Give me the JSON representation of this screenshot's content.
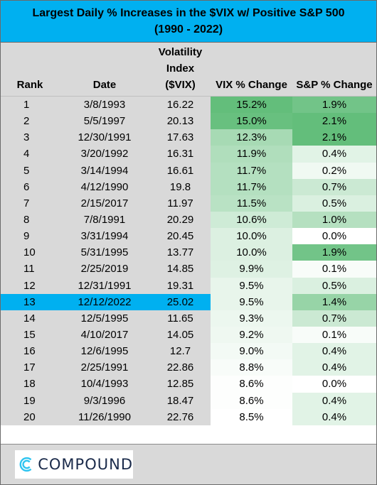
{
  "title": {
    "line1": "Largest Daily % Increases in the $VIX w/ Positive S&P 500",
    "line2": "(1990 - 2022)"
  },
  "headers": {
    "rank": "Rank",
    "date": "Date",
    "vix_line1": "Volatility",
    "vix_line2": "Index",
    "vix_line3": "($VIX)",
    "vix_change": "VIX % Change",
    "sp_change": "S&P % Change"
  },
  "rows": [
    {
      "rank": "1",
      "date": "3/8/1993",
      "vix": "16.22",
      "vix_change": "15.2%",
      "sp_change": "1.9%"
    },
    {
      "rank": "2",
      "date": "5/5/1997",
      "vix": "20.13",
      "vix_change": "15.0%",
      "sp_change": "2.1%"
    },
    {
      "rank": "3",
      "date": "12/30/1991",
      "vix": "17.63",
      "vix_change": "12.3%",
      "sp_change": "2.1%"
    },
    {
      "rank": "4",
      "date": "3/20/1992",
      "vix": "16.31",
      "vix_change": "11.9%",
      "sp_change": "0.4%"
    },
    {
      "rank": "5",
      "date": "3/14/1994",
      "vix": "16.61",
      "vix_change": "11.7%",
      "sp_change": "0.2%"
    },
    {
      "rank": "6",
      "date": "4/12/1990",
      "vix": "19.8",
      "vix_change": "11.7%",
      "sp_change": "0.7%"
    },
    {
      "rank": "7",
      "date": "2/15/2017",
      "vix": "11.97",
      "vix_change": "11.5%",
      "sp_change": "0.5%"
    },
    {
      "rank": "8",
      "date": "7/8/1991",
      "vix": "20.29",
      "vix_change": "10.6%",
      "sp_change": "1.0%"
    },
    {
      "rank": "9",
      "date": "3/31/1994",
      "vix": "20.45",
      "vix_change": "10.0%",
      "sp_change": "0.0%"
    },
    {
      "rank": "10",
      "date": "5/31/1995",
      "vix": "13.77",
      "vix_change": "10.0%",
      "sp_change": "1.9%"
    },
    {
      "rank": "11",
      "date": "2/25/2019",
      "vix": "14.85",
      "vix_change": "9.9%",
      "sp_change": "0.1%"
    },
    {
      "rank": "12",
      "date": "12/31/1991",
      "vix": "19.31",
      "vix_change": "9.5%",
      "sp_change": "0.5%"
    },
    {
      "rank": "13",
      "date": "12/12/2022",
      "vix": "25.02",
      "vix_change": "9.5%",
      "sp_change": "1.4%"
    },
    {
      "rank": "14",
      "date": "12/5/1995",
      "vix": "11.65",
      "vix_change": "9.3%",
      "sp_change": "0.7%"
    },
    {
      "rank": "15",
      "date": "4/10/2017",
      "vix": "14.05",
      "vix_change": "9.2%",
      "sp_change": "0.1%"
    },
    {
      "rank": "16",
      "date": "12/6/1995",
      "vix": "12.7",
      "vix_change": "9.0%",
      "sp_change": "0.4%"
    },
    {
      "rank": "17",
      "date": "2/25/1991",
      "vix": "22.86",
      "vix_change": "8.8%",
      "sp_change": "0.4%"
    },
    {
      "rank": "18",
      "date": "10/4/1993",
      "vix": "12.85",
      "vix_change": "8.6%",
      "sp_change": "0.0%"
    },
    {
      "rank": "19",
      "date": "9/3/1996",
      "vix": "18.47",
      "vix_change": "8.6%",
      "sp_change": "0.4%"
    },
    {
      "rank": "20",
      "date": "11/26/1990",
      "vix": "22.76",
      "vix_change": "8.5%",
      "sp_change": "0.4%"
    }
  ],
  "highlighted_rank": "13",
  "colors": {
    "title_bg": "#00b0f0",
    "header_bg": "#d9d9d9",
    "highlight_row": "#00b0f0",
    "heat_high": "#63be7b",
    "heat_low": "#ffffff"
  },
  "footer": {
    "logo_text": "COMPOUND",
    "logo_icon": "compound-c-logo-icon"
  }
}
